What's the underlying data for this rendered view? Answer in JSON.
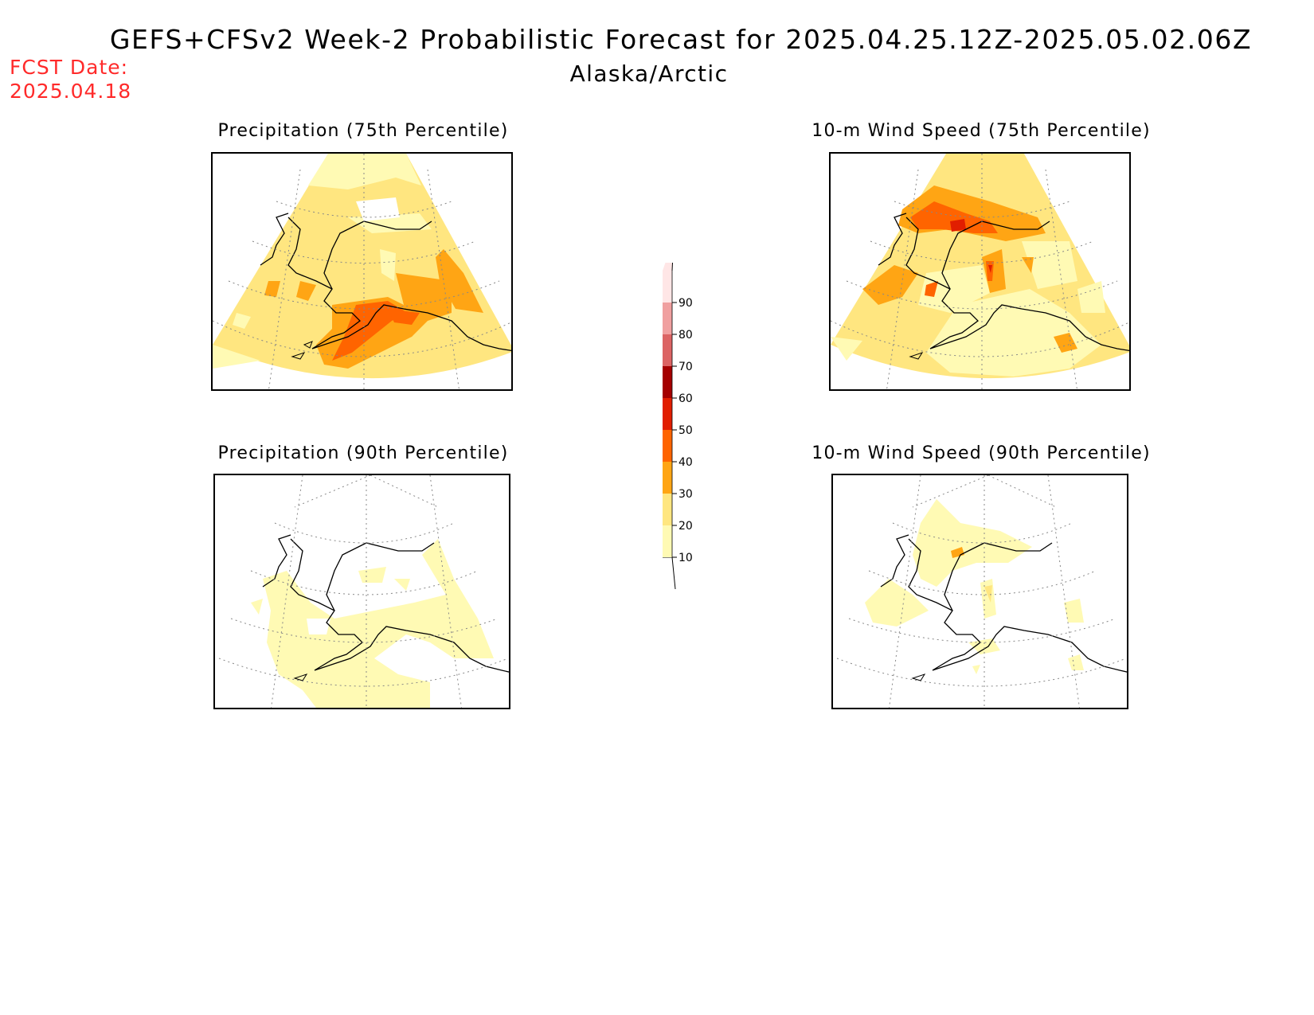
{
  "header": {
    "title": "GEFS+CFSv2 Week-2 Probabilistic Forecast for 2025.04.25.12Z-2025.05.02.06Z",
    "subtitle": "Alaska/Arctic",
    "forecast_date_label": "FCST Date:",
    "forecast_date": "2025.04.18"
  },
  "panels": [
    {
      "id": "precip-75",
      "title": "Precipitation (75th Percentile)"
    },
    {
      "id": "wind-75",
      "title": "10-m Wind Speed (75th Percentile)"
    },
    {
      "id": "precip-90",
      "title": "Precipitation (90th Percentile)"
    },
    {
      "id": "wind-90",
      "title": "10-m Wind Speed (90th Percentile)"
    }
  ],
  "legend": {
    "levels": [
      "10",
      "20",
      "30",
      "40",
      "50",
      "60",
      "70",
      "80",
      "90"
    ],
    "colors": [
      "#fffab4",
      "#ffe680",
      "#ffa514",
      "#ff6400",
      "#e11e00",
      "#a50000",
      "#dc6464",
      "#f0a0a0",
      "#ffe6e6"
    ]
  }
}
